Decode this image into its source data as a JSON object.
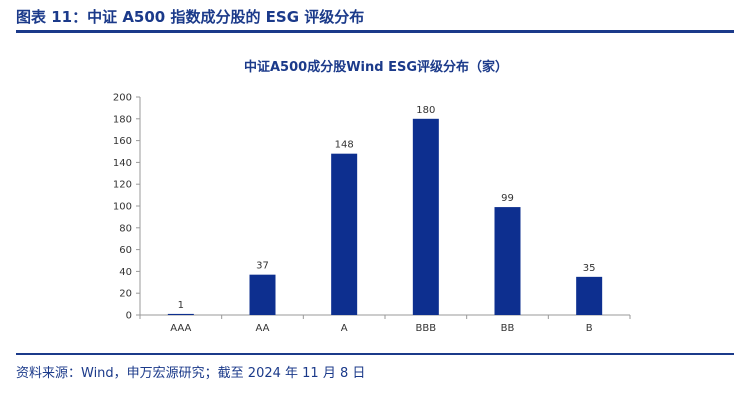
{
  "figure": {
    "title": "图表 11：中证 A500 指数成分股的 ESG 评级分布",
    "source": "资料来源：Wind，申万宏源研究；截至 2024 年 11 月 8 日"
  },
  "colors": {
    "bar": "#0d2f8f",
    "accent": "#1b3a8a",
    "axis": "#999999"
  },
  "chart_data": {
    "type": "bar",
    "title": "中证A500成分股Wind ESG评级分布（家）",
    "categories": [
      "AAA",
      "AA",
      "A",
      "BBB",
      "BB",
      "B"
    ],
    "values": [
      1,
      37,
      148,
      180,
      99,
      35
    ],
    "ylim": [
      0,
      200
    ],
    "yticks": [
      0,
      20,
      40,
      60,
      80,
      100,
      120,
      140,
      160,
      180,
      200
    ],
    "xlabel": "",
    "ylabel": "",
    "grid": false,
    "legend": "none"
  }
}
